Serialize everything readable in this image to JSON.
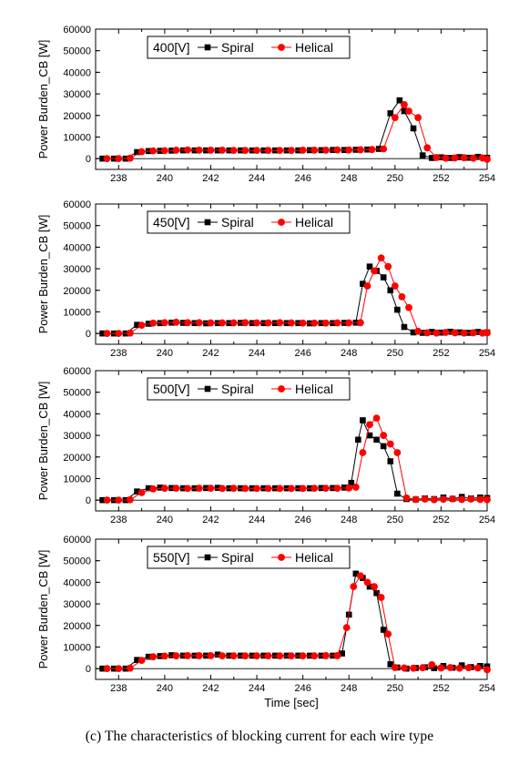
{
  "chart_data": [
    {
      "type": "line",
      "legend": {
        "label": "400[V]",
        "position": "top-left"
      },
      "xlabel": "",
      "ylabel": "Power Burden_CB [W]",
      "xlim": [
        237,
        254
      ],
      "ylim": [
        -5000,
        60000
      ],
      "xticks": [
        238,
        240,
        242,
        244,
        246,
        248,
        250,
        252,
        254
      ],
      "yticks": [
        0,
        10000,
        20000,
        30000,
        40000,
        50000,
        60000
      ],
      "series": [
        {
          "name": "Spiral",
          "color": "#000000",
          "marker": "square",
          "x": [
            237.3,
            237.8,
            238.3,
            238.8,
            239.3,
            239.8,
            240.3,
            240.8,
            241.3,
            241.8,
            242.3,
            242.8,
            243.3,
            243.8,
            244.3,
            244.8,
            245.3,
            245.8,
            246.3,
            246.8,
            247.3,
            247.8,
            248.3,
            248.8,
            249.3,
            249.8,
            250.2,
            250.4,
            250.8,
            251.2,
            251.6,
            252.0,
            252.4,
            252.8,
            253.2,
            253.6,
            254.0
          ],
          "y": [
            0,
            0,
            0,
            3000,
            3500,
            3600,
            3700,
            3800,
            3800,
            3800,
            3800,
            3800,
            3800,
            3800,
            3800,
            3800,
            3800,
            3800,
            3900,
            3900,
            4000,
            4000,
            4100,
            4200,
            4500,
            21000,
            27000,
            22000,
            14000,
            1500,
            300,
            600,
            300,
            700,
            400,
            800,
            400
          ]
        },
        {
          "name": "Helical",
          "color": "#ff0000",
          "marker": "circle",
          "x": [
            237.5,
            238.0,
            238.5,
            239.0,
            239.5,
            240.0,
            240.5,
            241.0,
            241.5,
            242.0,
            242.5,
            243.0,
            243.5,
            244.0,
            244.5,
            245.0,
            245.5,
            246.0,
            246.5,
            247.0,
            247.5,
            248.0,
            248.5,
            249.0,
            249.5,
            250.0,
            250.4,
            250.6,
            251.0,
            251.4,
            251.8,
            252.2,
            252.6,
            253.0,
            253.4,
            253.8,
            254.0
          ],
          "y": [
            0,
            0,
            200,
            3200,
            3600,
            3700,
            3900,
            4000,
            3900,
            3900,
            3900,
            3800,
            3800,
            3800,
            3800,
            3800,
            3800,
            3900,
            3900,
            3900,
            4000,
            4000,
            4100,
            4200,
            4500,
            19000,
            25000,
            22000,
            19000,
            5000,
            500,
            200,
            300,
            400,
            200,
            300,
            -300
          ]
        }
      ]
    },
    {
      "type": "line",
      "legend": {
        "label": "450[V]",
        "position": "top-left"
      },
      "xlabel": "",
      "ylabel": "Power Burden_CB [W]",
      "xlim": [
        237,
        254
      ],
      "ylim": [
        -5000,
        60000
      ],
      "xticks": [
        238,
        240,
        242,
        244,
        246,
        248,
        250,
        252,
        254
      ],
      "yticks": [
        0,
        10000,
        20000,
        30000,
        40000,
        50000,
        60000
      ],
      "series": [
        {
          "name": "Spiral",
          "color": "#000000",
          "marker": "square",
          "x": [
            237.3,
            237.8,
            238.3,
            238.8,
            239.3,
            239.8,
            240.3,
            240.8,
            241.3,
            241.8,
            242.3,
            242.8,
            243.3,
            243.8,
            244.3,
            244.8,
            245.3,
            245.8,
            246.3,
            246.8,
            247.3,
            247.8,
            248.3,
            248.6,
            248.9,
            249.2,
            249.5,
            249.8,
            250.1,
            250.4,
            250.8,
            251.2,
            251.6,
            252.0,
            252.4,
            252.8,
            253.2,
            253.6,
            254.0
          ],
          "y": [
            0,
            0,
            0,
            4000,
            4500,
            4800,
            5000,
            4900,
            4800,
            4700,
            4800,
            4800,
            4900,
            4800,
            4800,
            4800,
            4800,
            4800,
            4700,
            4800,
            4800,
            4900,
            5000,
            23000,
            31000,
            29000,
            26000,
            20000,
            11000,
            3000,
            500,
            300,
            700,
            400,
            800,
            500,
            300,
            700,
            500
          ]
        },
        {
          "name": "Helical",
          "color": "#ff0000",
          "marker": "circle",
          "x": [
            237.5,
            238.0,
            238.5,
            239.0,
            239.5,
            240.0,
            240.5,
            241.0,
            241.5,
            242.0,
            242.5,
            243.0,
            243.5,
            244.0,
            244.5,
            245.0,
            245.5,
            246.0,
            246.5,
            247.0,
            247.5,
            248.0,
            248.5,
            248.8,
            249.1,
            249.4,
            249.7,
            250.0,
            250.3,
            250.6,
            251.0,
            251.4,
            251.8,
            252.2,
            252.6,
            253.0,
            253.4,
            253.8,
            254.0
          ],
          "y": [
            0,
            0,
            200,
            3800,
            4800,
            5000,
            5200,
            5000,
            5000,
            4900,
            4900,
            4900,
            5000,
            4900,
            4900,
            5000,
            4900,
            4800,
            4800,
            4800,
            4900,
            4900,
            5000,
            22000,
            29000,
            35000,
            31000,
            22000,
            17000,
            12000,
            1000,
            300,
            200,
            500,
            300,
            200,
            300,
            200,
            300
          ]
        }
      ]
    },
    {
      "type": "line",
      "legend": {
        "label": "500[V]",
        "position": "top-left"
      },
      "xlabel": "",
      "ylabel": "Power Burden_CB [W]",
      "xlim": [
        237,
        254
      ],
      "ylim": [
        -5000,
        60000
      ],
      "xticks": [
        238,
        240,
        242,
        244,
        246,
        248,
        250,
        252,
        254
      ],
      "yticks": [
        0,
        10000,
        20000,
        30000,
        40000,
        50000,
        60000
      ],
      "series": [
        {
          "name": "Spiral",
          "color": "#000000",
          "marker": "square",
          "x": [
            237.3,
            237.8,
            238.3,
            238.8,
            239.3,
            239.8,
            240.3,
            240.8,
            241.3,
            241.8,
            242.3,
            242.8,
            243.3,
            243.8,
            244.3,
            244.8,
            245.3,
            245.8,
            246.3,
            246.8,
            247.3,
            247.8,
            248.1,
            248.4,
            248.6,
            248.9,
            249.2,
            249.5,
            249.8,
            250.1,
            250.5,
            250.9,
            251.3,
            251.7,
            252.1,
            252.5,
            252.9,
            253.3,
            253.7,
            254.0
          ],
          "y": [
            0,
            0,
            0,
            4000,
            5500,
            5800,
            5600,
            5500,
            5500,
            5600,
            5700,
            5500,
            5500,
            5500,
            5500,
            5500,
            5500,
            5500,
            5500,
            5600,
            5600,
            5800,
            8000,
            28000,
            37000,
            30000,
            28000,
            25000,
            18000,
            3000,
            500,
            300,
            800,
            500,
            1200,
            600,
            1500,
            800,
            1200,
            1000
          ]
        },
        {
          "name": "Helical",
          "color": "#ff0000",
          "marker": "circle",
          "x": [
            237.5,
            238.0,
            238.5,
            239.0,
            239.5,
            240.0,
            240.5,
            241.0,
            241.5,
            242.0,
            242.5,
            243.0,
            243.5,
            244.0,
            244.5,
            245.0,
            245.5,
            246.0,
            246.5,
            247.0,
            247.5,
            248.0,
            248.3,
            248.6,
            248.9,
            249.2,
            249.5,
            249.8,
            250.1,
            250.5,
            250.9,
            251.3,
            251.7,
            252.1,
            252.5,
            252.9,
            253.3,
            253.7,
            254.0
          ],
          "y": [
            0,
            0,
            200,
            3500,
            5200,
            5500,
            5500,
            5400,
            5500,
            5500,
            5400,
            5500,
            5400,
            5400,
            5400,
            5400,
            5400,
            5400,
            5500,
            5500,
            5500,
            5600,
            6000,
            22000,
            35000,
            38000,
            30000,
            26000,
            22000,
            1000,
            300,
            500,
            200,
            400,
            600,
            300,
            500,
            300,
            200
          ]
        }
      ]
    },
    {
      "type": "line",
      "legend": {
        "label": "550[V]",
        "position": "top-left"
      },
      "xlabel": "Time [sec]",
      "ylabel": "Power Burden_CB [W]",
      "xlim": [
        237,
        254
      ],
      "ylim": [
        -5000,
        60000
      ],
      "xticks": [
        238,
        240,
        242,
        244,
        246,
        248,
        250,
        252,
        254
      ],
      "yticks": [
        0,
        10000,
        20000,
        30000,
        40000,
        50000,
        60000
      ],
      "series": [
        {
          "name": "Spiral",
          "color": "#000000",
          "marker": "square",
          "x": [
            237.3,
            237.8,
            238.3,
            238.8,
            239.3,
            239.8,
            240.3,
            240.8,
            241.3,
            241.8,
            242.3,
            242.8,
            243.3,
            243.8,
            244.3,
            244.8,
            245.3,
            245.8,
            246.3,
            246.8,
            247.3,
            247.7,
            248.0,
            248.3,
            248.6,
            248.9,
            249.2,
            249.5,
            249.8,
            250.1,
            250.5,
            250.9,
            251.3,
            251.7,
            252.1,
            252.5,
            252.9,
            253.3,
            253.7,
            254.0
          ],
          "y": [
            0,
            0,
            0,
            4000,
            5500,
            5800,
            6200,
            6000,
            6000,
            6000,
            6500,
            6000,
            6000,
            6000,
            6000,
            6000,
            6000,
            6000,
            6000,
            6000,
            6000,
            7000,
            25000,
            44000,
            42000,
            38000,
            35000,
            18000,
            2000,
            500,
            0,
            300,
            600,
            200,
            1200,
            400,
            1500,
            700,
            1200,
            1000
          ]
        },
        {
          "name": "Helical",
          "color": "#ff0000",
          "marker": "circle",
          "x": [
            237.5,
            238.0,
            238.5,
            239.0,
            239.5,
            240.0,
            240.5,
            241.0,
            241.5,
            242.0,
            242.5,
            243.0,
            243.5,
            244.0,
            244.5,
            245.0,
            245.5,
            246.0,
            246.5,
            247.0,
            247.5,
            247.9,
            248.2,
            248.5,
            248.8,
            249.1,
            249.4,
            249.7,
            250.0,
            250.4,
            250.8,
            251.2,
            251.6,
            252.0,
            252.4,
            252.8,
            253.2,
            253.6,
            254.0
          ],
          "y": [
            0,
            0,
            200,
            3800,
            5500,
            5800,
            5900,
            6000,
            6000,
            6000,
            5900,
            5900,
            5900,
            5900,
            5900,
            5900,
            5900,
            5900,
            5900,
            6000,
            6000,
            19000,
            38000,
            43000,
            40000,
            38000,
            33000,
            16000,
            500,
            300,
            200,
            400,
            1800,
            300,
            500,
            200,
            400,
            300,
            -500
          ]
        }
      ]
    }
  ],
  "caption": "(c) The characteristics of blocking current for each wire type"
}
